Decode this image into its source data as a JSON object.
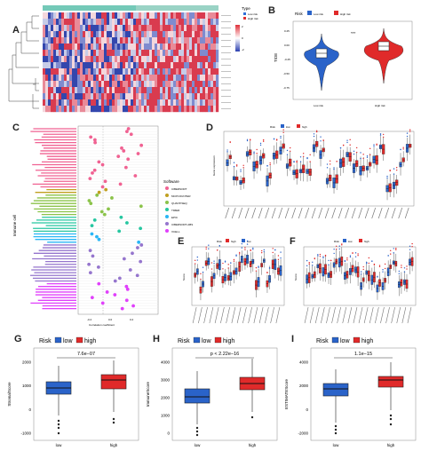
{
  "panels": {
    "A": {
      "label": "A",
      "legend_top": {
        "title": "Type",
        "items": [
          {
            "label": "Low risk",
            "color": "#2e6fd8"
          },
          {
            "label": "High risk",
            "color": "#e03030"
          }
        ]
      },
      "colorbar_ticks": [
        "2",
        "0",
        "-2"
      ]
    },
    "B": {
      "label": "B",
      "legend_title": "Risk",
      "legend_items": [
        {
          "label": "Low risk",
          "color": "#2a63c9"
        },
        {
          "label": "High risk",
          "color": "#e02a2a"
        }
      ],
      "ylabel": "TIDE",
      "yticks": [
        "0.25",
        "0.00",
        "-0.25",
        "-0.50",
        "-0.75"
      ],
      "xcats": [
        "Low risk",
        "High risk"
      ],
      "signif": "***"
    },
    "C": {
      "label": "C",
      "xlabel": "Correlation coefficient",
      "ylabel": "Immune cell",
      "legend_title": "Software",
      "legend_items": [
        {
          "label": "CIBERSORT",
          "color": "#f06292"
        },
        {
          "label": "MCPCOUNTER",
          "color": "#c0a020"
        },
        {
          "label": "QUANTISEQ",
          "color": "#8bc34a"
        },
        {
          "label": "TIMER",
          "color": "#26c6a0"
        },
        {
          "label": "EPIC",
          "color": "#29b6f6"
        },
        {
          "label": "CIBERSORT-ABS",
          "color": "#9575cd"
        },
        {
          "label": "XCELL",
          "color": "#e040fb"
        }
      ],
      "xticks": [
        "-0.2",
        "0.0",
        "0.2"
      ]
    },
    "D": {
      "label": "D",
      "legend_title": "Risk",
      "legend_items": [
        {
          "label": "low",
          "color": "#2a63c9"
        },
        {
          "label": "high",
          "color": "#e02a2a"
        }
      ],
      "ylabel": "Gene expression"
    },
    "E": {
      "label": "E",
      "legend_title": "Risk",
      "legend_items": [
        {
          "label": "high",
          "color": "#e02a2a"
        },
        {
          "label": "low",
          "color": "#2a63c9"
        }
      ],
      "ylabel": "Score"
    },
    "F": {
      "label": "F",
      "legend_title": "Risk",
      "legend_items": [
        {
          "label": "low",
          "color": "#2a63c9"
        },
        {
          "label": "high",
          "color": "#e02a2a"
        }
      ],
      "ylabel": "Score"
    },
    "G": {
      "label": "G",
      "legend_title": "Risk",
      "legend_items": [
        {
          "label": "low",
          "color": "#2a63c9"
        },
        {
          "label": "high",
          "color": "#e02a2a"
        }
      ],
      "pvalue": "7.6e−07",
      "ylabel": "StromalScore",
      "yticks": [
        "2000",
        "1000",
        "0",
        "-1000"
      ],
      "xcats": [
        "low",
        "high"
      ]
    },
    "H": {
      "label": "H",
      "legend_title": "Risk",
      "legend_items": [
        {
          "label": "low",
          "color": "#2a63c9"
        },
        {
          "label": "high",
          "color": "#e02a2a"
        }
      ],
      "pvalue": "p < 2.22e−16",
      "ylabel": "ImmuneScore",
      "yticks": [
        "4000",
        "3000",
        "2000",
        "1000",
        "0"
      ],
      "xcats": [
        "low",
        "high"
      ]
    },
    "I": {
      "label": "I",
      "legend_title": "Risk",
      "legend_items": [
        {
          "label": "low",
          "color": "#2a63c9"
        },
        {
          "label": "high",
          "color": "#e02a2a"
        }
      ],
      "pvalue": "1.1e−15",
      "ylabel": "ESTIMATEScore",
      "yticks": [
        "4000",
        "2000",
        "0",
        "-2000"
      ],
      "xcats": [
        "low",
        "high"
      ]
    }
  },
  "colors": {
    "low": "#2a63c9",
    "high": "#e02a2a",
    "heat_red": "#d9475b",
    "heat_blue": "#3d4fb0"
  }
}
